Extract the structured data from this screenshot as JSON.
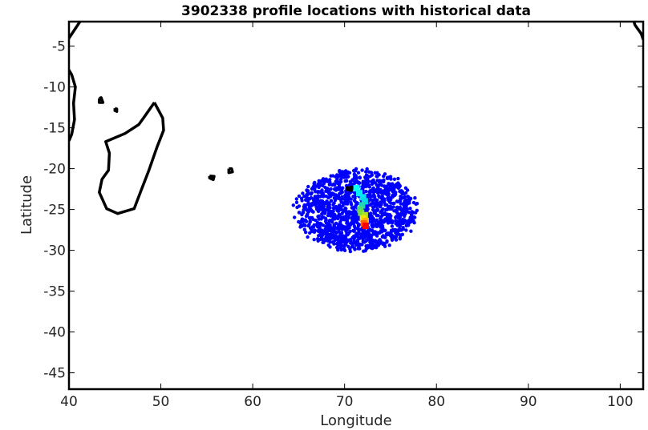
{
  "chart_data": {
    "type": "scatter",
    "title": "3902338 profile locations with historical data",
    "xlabel": "Longitude",
    "ylabel": "Latitude",
    "xlim": [
      40,
      102.5
    ],
    "ylim": [
      -47,
      -2
    ],
    "xticks": [
      40,
      50,
      60,
      70,
      80,
      90,
      100
    ],
    "yticks": [
      -5,
      -10,
      -15,
      -20,
      -25,
      -30,
      -35,
      -40,
      -45
    ],
    "grid": false,
    "legend": "none",
    "colors": {
      "historical": "#0000ff",
      "coast": "#000000",
      "profile_track_start": "#00ffff",
      "profile_track_end": "#ff0000"
    },
    "historical_cloud": {
      "center": [
        71.3,
        -25.1
      ],
      "lon_range": [
        64.5,
        78.5
      ],
      "lat_range": [
        -30,
        -19.5
      ],
      "count": 1400
    },
    "profile_track": [
      {
        "lon": 71.3,
        "lat": -22.4
      },
      {
        "lon": 71.6,
        "lat": -23.0
      },
      {
        "lon": 72.0,
        "lat": -23.5
      },
      {
        "lon": 72.2,
        "lat": -24.0
      },
      {
        "lon": 71.9,
        "lat": -24.5
      },
      {
        "lon": 71.7,
        "lat": -25.0
      },
      {
        "lon": 71.8,
        "lat": -25.4
      },
      {
        "lon": 72.2,
        "lat": -25.7
      },
      {
        "lon": 72.0,
        "lat": -26.1
      },
      {
        "lon": 72.3,
        "lat": -26.4
      },
      {
        "lon": 72.1,
        "lat": -26.7
      },
      {
        "lon": 72.3,
        "lat": -27.0
      }
    ]
  }
}
